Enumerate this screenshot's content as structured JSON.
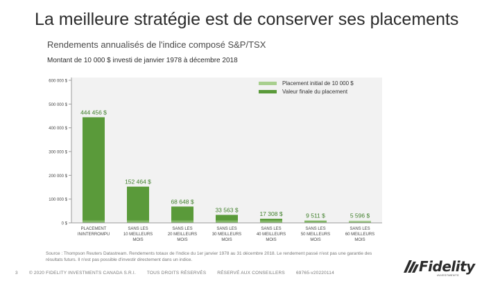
{
  "slide": {
    "title": "La meilleure stratégie est de conserver ses placements",
    "page_number": "3",
    "source_note": "Source : Thompson Reuters Datastream. Rendements totaux de l'indice du 1er janvier 1978 au 31 décembre 2018. Le rendement passé n'est pas une garantie des résultats futurs. Il n'est pas possible d'investir directement dans un indice.",
    "footer": {
      "copyright": "© 2020 FIDELITY INVESTMENTS CANADA S.R.I.",
      "rights": "TOUS DROITS RÉSERVÉS",
      "advisors": "RÉSERVÉ AUX CONSEILLERS",
      "code": "69765-v20220114"
    },
    "logo": {
      "text": "Fidelity",
      "sub": "INVESTMENTS",
      "icon": "fidelity-logo-icon"
    }
  },
  "chart_data": {
    "type": "bar",
    "title": "Rendements annualisés de l'indice composé S&P/TSX",
    "subtitle": "Montant de 10 000 $ investi de janvier 1978 à décembre 2018",
    "categories": [
      [
        "PLACEMENT",
        "ININTERROMPU"
      ],
      [
        "SANS LES",
        "10 MEILLEURS",
        "MOIS"
      ],
      [
        "SANS LES",
        "20 MEILLEURS",
        "MOIS"
      ],
      [
        "SANS LES",
        "30 MEILLEURS",
        "MOIS"
      ],
      [
        "SANS LES",
        "40 MEILLEURS",
        "MOIS"
      ],
      [
        "SANS LES",
        "50 MEILLEURS",
        "MOIS"
      ],
      [
        "SANS LES",
        "60 MEILLEURS",
        "MOIS"
      ]
    ],
    "series": [
      {
        "name": "Placement initial de 10 000 $",
        "color": "#a8cf8e",
        "values": [
          10000,
          10000,
          10000,
          10000,
          10000,
          10000,
          10000
        ]
      },
      {
        "name": "Valeur finale du placement",
        "color": "#5a9a3a",
        "values": [
          444456,
          152464,
          68648,
          33563,
          17308,
          9511,
          5596
        ]
      }
    ],
    "value_labels": [
      "444 456 $",
      "152 464 $",
      "68 648 $",
      "33 563 $",
      "17 308 $",
      "9 511 $",
      "5 596 $"
    ],
    "label_color": "#3f7f2a",
    "yticks": [
      0,
      100000,
      200000,
      300000,
      400000,
      500000,
      600000
    ],
    "ytick_labels": [
      "0 $",
      "100 000 $",
      "200 000 $",
      "300 000 $",
      "400 000 $",
      "500 000 $",
      "600 000 $"
    ],
    "ylim": [
      0,
      600000
    ],
    "grid": false,
    "legend_position": "top-right",
    "xlabel": "",
    "ylabel": ""
  }
}
